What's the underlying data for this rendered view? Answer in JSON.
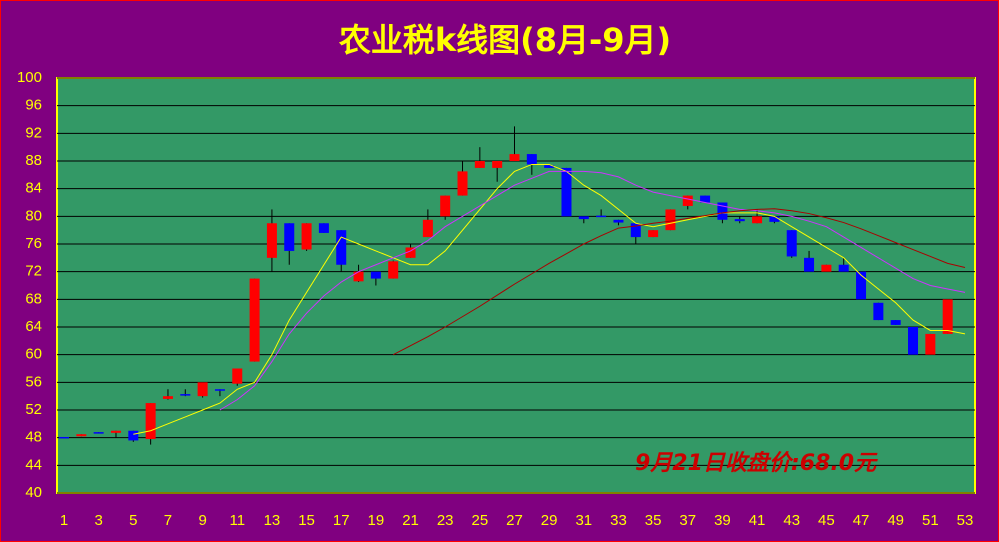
{
  "chart_data": {
    "type": "candlestick",
    "title": "农业税k线图(8月-9月)",
    "annotation": "9月21日收盘价:68.0元",
    "categories": [
      "1",
      null,
      "3",
      null,
      "5",
      null,
      "7",
      null,
      "9",
      null,
      "11",
      null,
      "13",
      null,
      "15",
      null,
      "17",
      null,
      "19",
      null,
      "21",
      null,
      "23",
      null,
      "25",
      null,
      "27",
      null,
      "29",
      null,
      "31",
      null,
      "33",
      null,
      "35",
      null,
      "37",
      null,
      "39",
      null,
      "41",
      null,
      "43",
      null,
      "45",
      null,
      "47",
      null,
      "49",
      null,
      "51",
      null,
      "53"
    ],
    "open": [
      48.1,
      48.2,
      48.8,
      48.7,
      49,
      47.8,
      53.6,
      54.3,
      54,
      55,
      55.8,
      59,
      74,
      79,
      75.2,
      79,
      78,
      70.6,
      72,
      71,
      74,
      77,
      80,
      83,
      87,
      87,
      88,
      89,
      87.4,
      87,
      80,
      80.1,
      79.5,
      79,
      77,
      78,
      81.5,
      83,
      82,
      79.6,
      79,
      80,
      78,
      74,
      72,
      73,
      72,
      67.5,
      65,
      64,
      60,
      63,
      null
    ],
    "high": [
      48.1,
      48.5,
      48.8,
      49,
      49,
      53,
      55,
      55,
      56,
      55,
      58,
      71,
      81,
      79,
      79,
      79,
      78,
      73,
      72,
      73.6,
      76,
      81,
      83,
      88,
      90,
      88,
      93,
      89,
      87.4,
      87,
      80,
      81,
      79.5,
      79,
      78,
      81,
      83,
      83,
      82,
      80,
      81,
      80,
      78,
      75,
      73,
      74,
      72,
      67.5,
      65,
      64,
      63,
      68,
      null
    ],
    "low": [
      47.9,
      48.2,
      48.6,
      48,
      47.4,
      47,
      53.5,
      54,
      53.8,
      54,
      55.5,
      59,
      72,
      73,
      75,
      77.6,
      72,
      70.5,
      70,
      71,
      74,
      77,
      79.5,
      83,
      87,
      85,
      88,
      86,
      87,
      80,
      79,
      79.9,
      78.7,
      76,
      77,
      78,
      81,
      82,
      79,
      79,
      79,
      79,
      74,
      72,
      72,
      72,
      68,
      65,
      64.3,
      60,
      60,
      63,
      null
    ],
    "close": [
      47.9,
      48.5,
      48.6,
      49,
      47.6,
      53,
      54,
      54.1,
      56,
      54.8,
      58,
      71,
      79,
      75,
      79,
      77.6,
      73,
      72,
      71,
      73.5,
      75.5,
      79.5,
      83,
      86.5,
      88,
      88,
      89,
      87.5,
      87,
      80,
      79.6,
      79.9,
      79.1,
      77,
      78,
      81,
      83,
      82,
      79.5,
      79.3,
      80,
      79.2,
      74.2,
      72,
      73,
      72,
      68,
      65,
      64.3,
      60,
      63,
      68,
      null
    ],
    "up_color": "#ff0000",
    "down_color": "#0000ff",
    "series": [
      {
        "color": "#ffff00",
        "values": [
          null,
          null,
          null,
          null,
          48.5,
          49,
          50,
          51,
          52,
          53,
          55,
          56,
          60,
          65,
          69,
          73,
          77,
          76,
          75,
          74,
          73,
          73,
          75,
          78,
          81,
          84,
          86.5,
          87.5,
          87.5,
          86.5,
          84.5,
          83,
          81,
          79,
          78.5,
          79,
          79.5,
          80,
          80.5,
          80.5,
          80.5,
          80,
          78.5,
          77,
          75.5,
          74,
          71.5,
          69.5,
          67.5,
          65,
          63.5,
          63.5,
          63
        ]
      },
      {
        "color": "#cc33ff",
        "values": [
          null,
          null,
          null,
          null,
          null,
          null,
          null,
          null,
          null,
          52,
          53.5,
          55.5,
          59,
          63,
          66,
          68.5,
          70.5,
          72,
          73,
          74,
          75,
          76.5,
          78.5,
          80,
          81.5,
          83,
          84.5,
          85.5,
          86.5,
          86.5,
          86.5,
          86.3,
          85.7,
          84.5,
          83.5,
          83,
          82.5,
          82,
          81.5,
          81,
          80.8,
          80.5,
          80,
          79.3,
          78.5,
          77,
          75.5,
          74,
          72.5,
          71,
          70,
          69.5,
          69
        ]
      },
      {
        "color": "#aa0000",
        "values": [
          null,
          null,
          null,
          null,
          null,
          null,
          null,
          null,
          null,
          null,
          null,
          null,
          null,
          null,
          null,
          null,
          null,
          null,
          null,
          60,
          61.3,
          62.6,
          64,
          65.5,
          67,
          68.6,
          70.2,
          71.7,
          73.2,
          74.6,
          76,
          77.2,
          78.3,
          78.6,
          79,
          79.3,
          79.7,
          80.1,
          80.5,
          80.8,
          81,
          81.1,
          80.8,
          80.4,
          79.8,
          79.1,
          78.2,
          77.2,
          76.2,
          75.2,
          74.2,
          73.2,
          72.6
        ]
      }
    ],
    "ylim": [
      40,
      100
    ],
    "yticks": [
      40,
      44,
      48,
      52,
      56,
      60,
      64,
      68,
      72,
      76,
      80,
      84,
      88,
      92,
      96,
      100
    ],
    "grid": true
  }
}
